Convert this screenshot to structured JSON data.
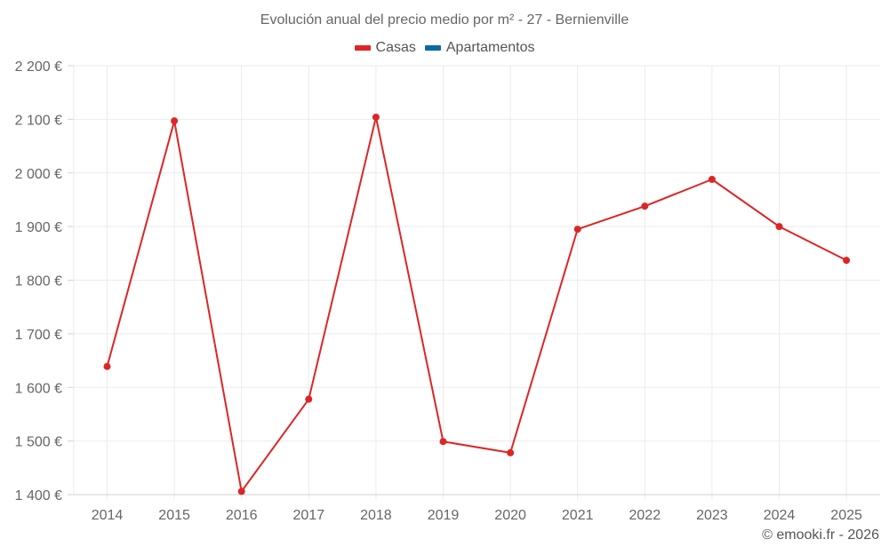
{
  "chart": {
    "title": "Evolución anual del precio medio por m² - 27 - Bernienville",
    "credit": "© emooki.fr - 2026",
    "legend": [
      {
        "label": "Casas",
        "color": "#dc2626"
      },
      {
        "label": "Apartamentos",
        "color": "#0b6aa2"
      }
    ]
  },
  "chart_data": {
    "type": "line",
    "title": "Evolución anual del precio medio por m² - 27 - Bernienville",
    "xlabel": "",
    "ylabel": "",
    "categories": [
      "2014",
      "2015",
      "2016",
      "2017",
      "2018",
      "2019",
      "2020",
      "2021",
      "2022",
      "2023",
      "2024",
      "2025"
    ],
    "series": [
      {
        "name": "Casas",
        "color": "#dc2626",
        "values": [
          1639,
          2097,
          1406,
          1578,
          2104,
          1499,
          1478,
          1895,
          1938,
          1988,
          1900,
          1837
        ]
      },
      {
        "name": "Apartamentos",
        "color": "#0b6aa2",
        "values": []
      }
    ],
    "yticks": [
      "1 400 €",
      "1 500 €",
      "1 600 €",
      "1 700 €",
      "1 800 €",
      "1 900 €",
      "2 000 €",
      "2 100 €",
      "2 200 €"
    ],
    "ylim": [
      1400,
      2200
    ],
    "grid": true,
    "legend_position": "top"
  }
}
